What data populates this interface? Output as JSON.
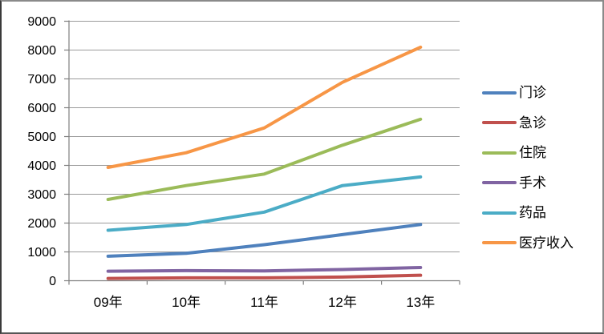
{
  "chart_data": {
    "type": "line",
    "title": "",
    "xlabel": "",
    "ylabel": "",
    "categories": [
      "09年",
      "10年",
      "11年",
      "12年",
      "13年"
    ],
    "series": [
      {
        "name": "门诊",
        "color": "#4F81BD",
        "values": [
          850,
          950,
          1250,
          1600,
          1950
        ]
      },
      {
        "name": "急诊",
        "color": "#C0504D",
        "values": [
          80,
          100,
          100,
          130,
          190
        ]
      },
      {
        "name": "住院",
        "color": "#9BBB59",
        "values": [
          2820,
          3300,
          3700,
          4700,
          5600
        ]
      },
      {
        "name": "手术",
        "color": "#8064A2",
        "values": [
          330,
          350,
          340,
          390,
          460
        ]
      },
      {
        "name": "药品",
        "color": "#4BACC6",
        "values": [
          1750,
          1950,
          2380,
          3300,
          3600
        ]
      },
      {
        "name": "医疗收入",
        "color": "#F79646",
        "values": [
          3930,
          4440,
          5300,
          6880,
          8100
        ]
      }
    ],
    "ylim": [
      0,
      9000
    ],
    "ytick_step": 1000,
    "yticks": [
      0,
      1000,
      2000,
      3000,
      4000,
      5000,
      6000,
      7000,
      8000,
      9000
    ],
    "grid": true,
    "legend_position": "right"
  },
  "colors": {
    "background": "#FFFFFF",
    "gridline": "#9B9B9B",
    "axis": "#7F7F7F",
    "frame_border": "#8A8A8A",
    "text": "#000000"
  }
}
